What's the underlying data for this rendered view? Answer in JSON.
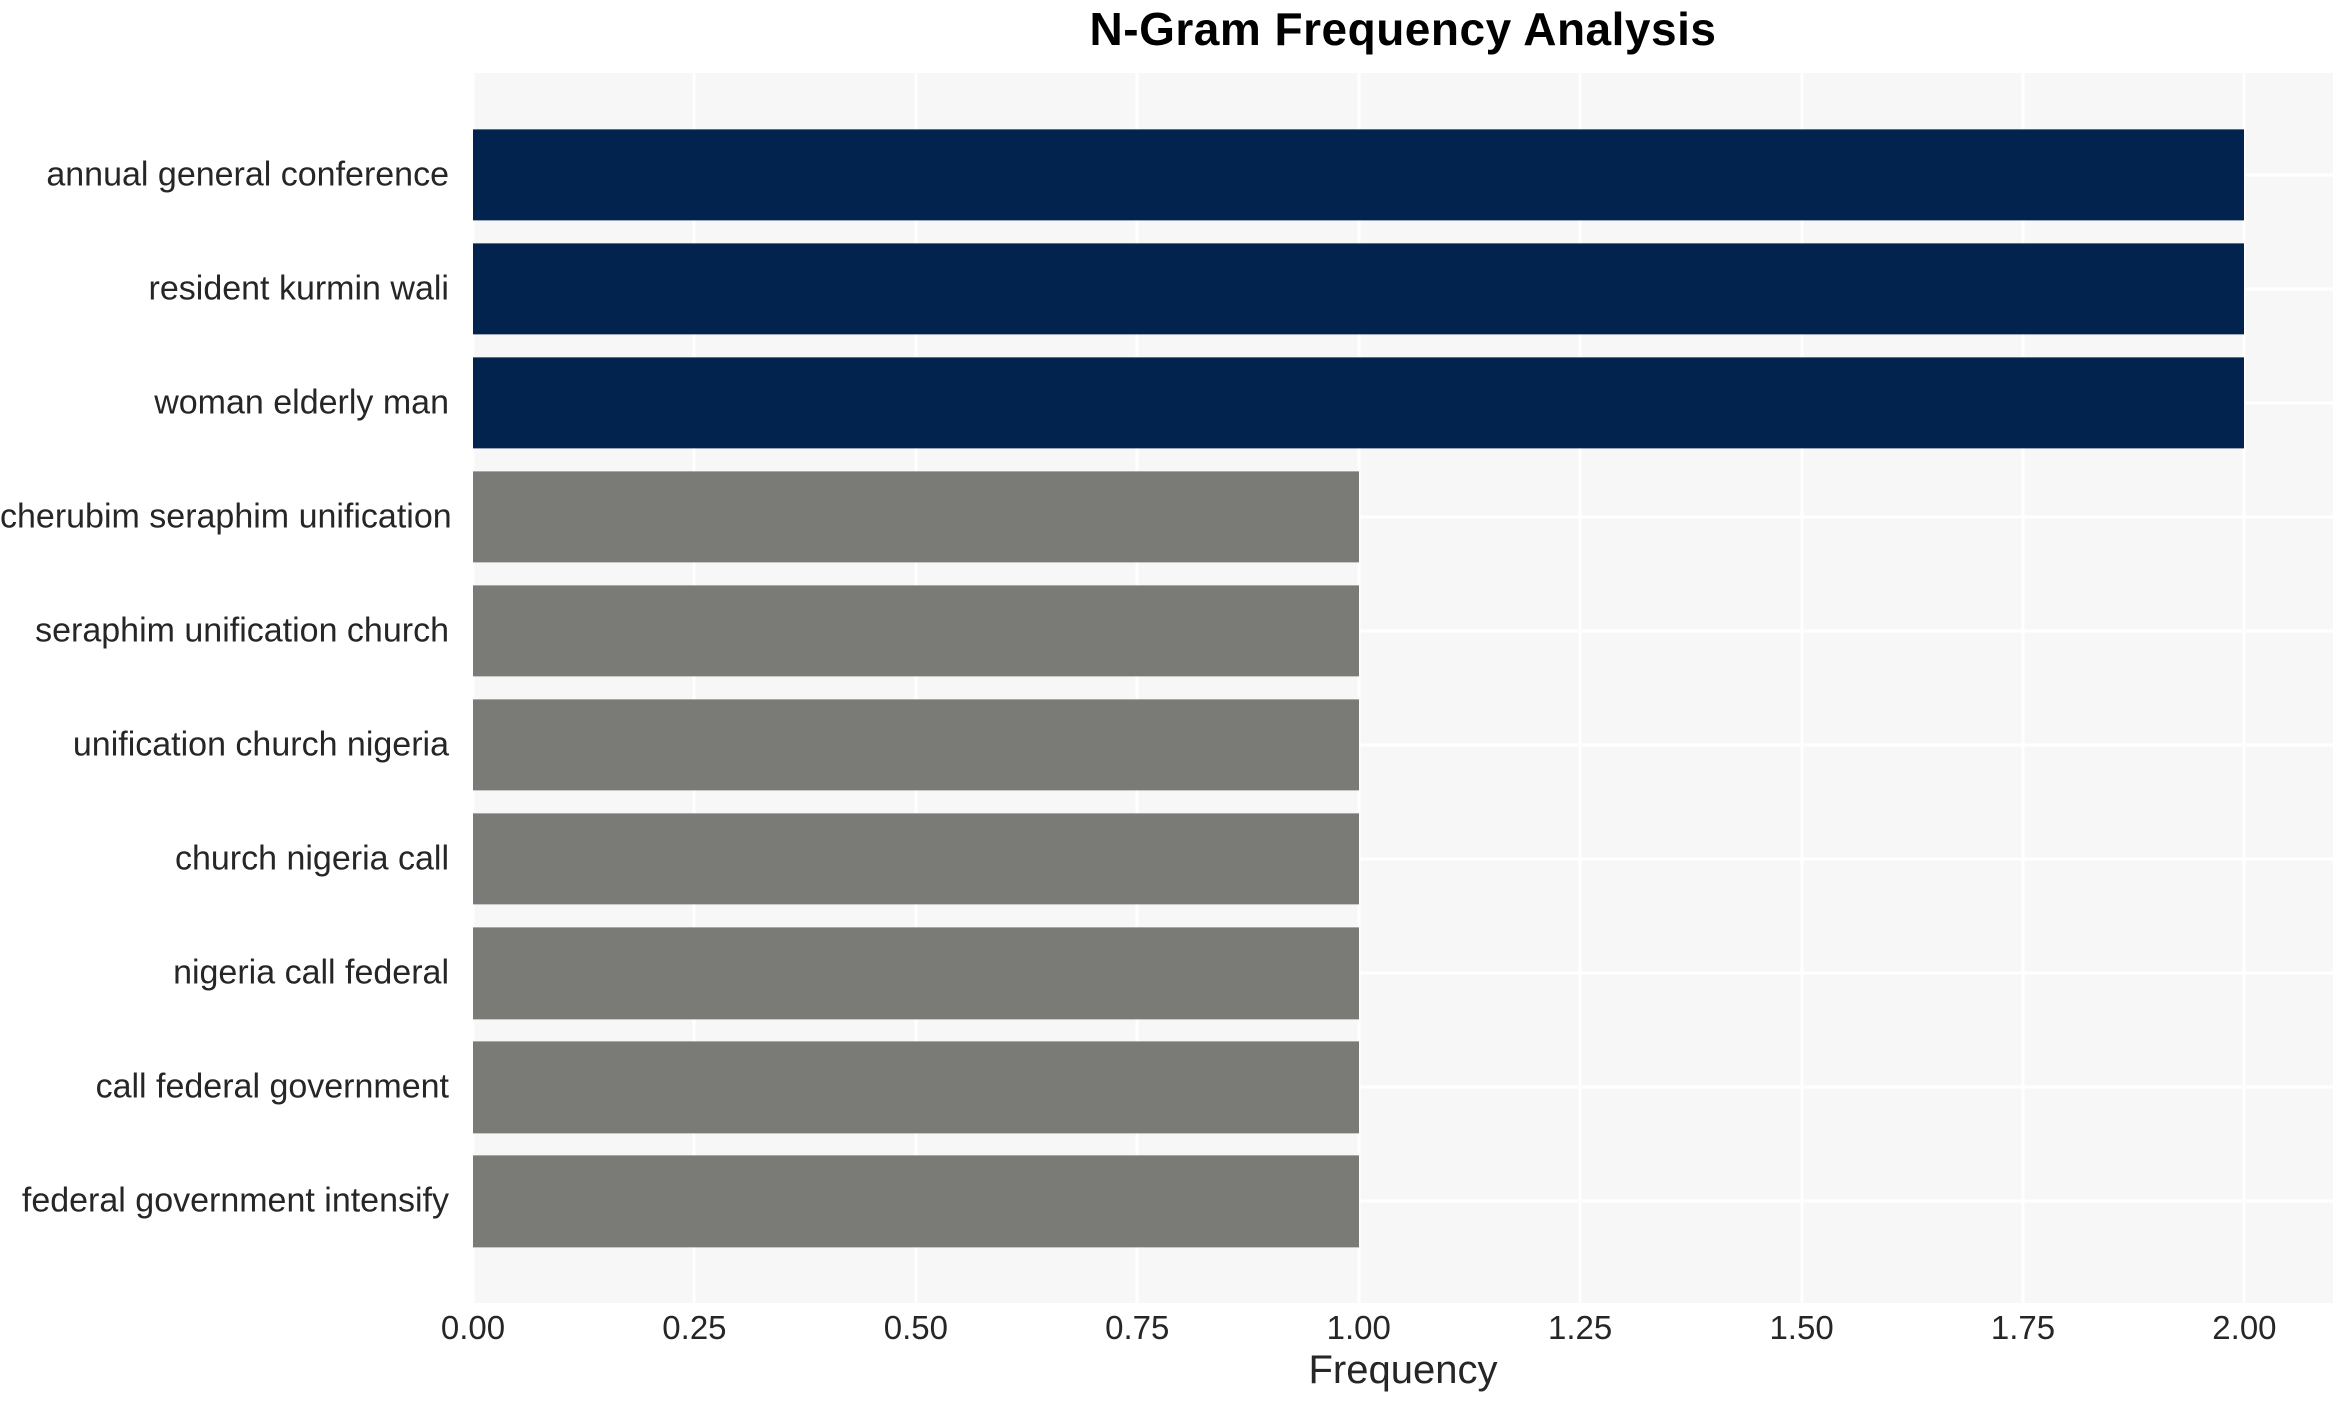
{
  "chart_data": {
    "type": "bar",
    "orientation": "horizontal",
    "title": "N-Gram Frequency Analysis",
    "xlabel": "Frequency",
    "ylabel": "",
    "categories": [
      "annual general conference",
      "resident kurmin wali",
      "woman elderly man",
      "cherubim seraphim unification",
      "seraphim unification church",
      "unification church nigeria",
      "church nigeria call",
      "nigeria call federal",
      "call federal government",
      "federal government intensify"
    ],
    "values": [
      2,
      2,
      2,
      1,
      1,
      1,
      1,
      1,
      1,
      1
    ],
    "bar_colors": [
      "#02234d",
      "#02234d",
      "#02234d",
      "#7a7a76",
      "#7a7a76",
      "#7a7a76",
      "#7a7a76",
      "#7a7a76",
      "#7a7a76",
      "#7a7a76"
    ],
    "xlim": [
      0,
      2.1
    ],
    "xtick_values": [
      0.0,
      0.25,
      0.5,
      0.75,
      1.0,
      1.25,
      1.5,
      1.75,
      2.0
    ],
    "xtick_labels": [
      "0.00",
      "0.25",
      "0.50",
      "0.75",
      "1.00",
      "1.25",
      "1.50",
      "1.75",
      "2.00"
    ],
    "grid": true,
    "legend": false,
    "plot_background": "#f7f7f8",
    "grid_color": "#ffffff",
    "text_color": "#262626"
  }
}
